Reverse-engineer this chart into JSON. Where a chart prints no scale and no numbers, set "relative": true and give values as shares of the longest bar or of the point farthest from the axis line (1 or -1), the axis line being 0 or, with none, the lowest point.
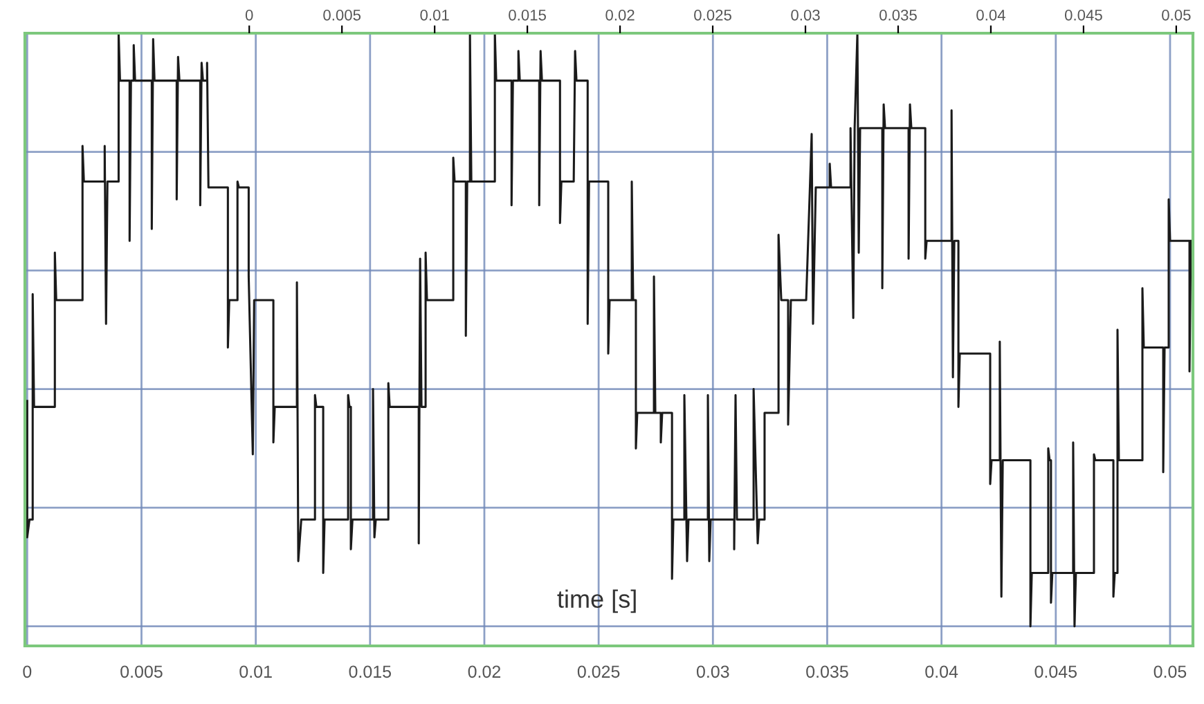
{
  "chart_data": {
    "type": "line",
    "relative": true,
    "xlabel": "time [s]",
    "grid": true,
    "xlim": [
      -0.0001,
      0.051
    ],
    "xticks": [
      0,
      0.005,
      0.01,
      0.015,
      0.02,
      0.025,
      0.03,
      0.035,
      0.04,
      0.045,
      0.05
    ],
    "x2lim": [
      -0.0121,
      0.0509
    ],
    "x2ticks": [
      0,
      0.005,
      0.01,
      0.015,
      0.02,
      0.025,
      0.03,
      0.035,
      0.04,
      0.045,
      0.05
    ],
    "series": [
      {
        "color": "#1a1a1a",
        "x": [
          0,
          0,
          0.0001,
          0.00024,
          0.00024,
          0.0003,
          0.00121,
          0.00121,
          0.00127,
          0.00242,
          0.00242,
          0.00248,
          0.00339,
          0.00339,
          0.00345,
          0.00351,
          0.004,
          0.004,
          0.00406,
          0.00448,
          0.00448,
          0.00454,
          0.00466,
          0.00466,
          0.00472,
          0.00545,
          0.00545,
          0.00551,
          0.00557,
          0.00654,
          0.00654,
          0.0066,
          0.00666,
          0.00757,
          0.00757,
          0.00763,
          0.00769,
          0.00787,
          0.00787,
          0.00793,
          0.00878,
          0.00878,
          0.00884,
          0.0092,
          0.0092,
          0.00926,
          0.00969,
          0.00969,
          0.00987,
          0.00993,
          0.01077,
          0.01077,
          0.01083,
          0.0118,
          0.0118,
          0.01186,
          0.01199,
          0.01259,
          0.01259,
          0.01265,
          0.01295,
          0.01295,
          0.01301,
          0.01404,
          0.01404,
          0.0141,
          0.01416,
          0.01416,
          0.01423,
          0.01513,
          0.01513,
          0.01519,
          0.01525,
          0.0158,
          0.0158,
          0.01586,
          0.01713,
          0.01713,
          0.01719,
          0.01725,
          0.01743,
          0.01743,
          0.01749,
          0.01864,
          0.01864,
          0.0187,
          0.01919,
          0.01919,
          0.01925,
          0.01937,
          0.01937,
          0.01943,
          0.02046,
          0.02046,
          0.02052,
          0.02119,
          0.02119,
          0.02125,
          0.02149,
          0.02149,
          0.02155,
          0.0224,
          0.0224,
          0.02246,
          0.02252,
          0.02331,
          0.02331,
          0.02337,
          0.02391,
          0.02397,
          0.02403,
          0.02452,
          0.02452,
          0.02458,
          0.02542,
          0.02542,
          0.02548,
          0.02645,
          0.02645,
          0.02651,
          0.02663,
          0.02663,
          0.02669,
          0.02742,
          0.02742,
          0.02748,
          0.02772,
          0.02772,
          0.02778,
          0.02821,
          0.02821,
          0.02827,
          0.02875,
          0.02875,
          0.02887,
          0.02893,
          0.02978,
          0.02978,
          0.02984,
          0.0299,
          0.03093,
          0.03093,
          0.03099,
          0.03105,
          0.03178,
          0.03178,
          0.03196,
          0.03202,
          0.03226,
          0.03226,
          0.03287,
          0.03287,
          0.03299,
          0.03329,
          0.03329,
          0.03341,
          0.03408,
          0.03432,
          0.03438,
          0.0345,
          0.03511,
          0.03511,
          0.03517,
          0.03602,
          0.03602,
          0.03614,
          0.0362,
          0.03632,
          0.03638,
          0.03644,
          0.03741,
          0.03741,
          0.03747,
          0.03753,
          0.03856,
          0.03856,
          0.03862,
          0.03868,
          0.03929,
          0.03929,
          0.03935,
          0.04044,
          0.04044,
          0.0405,
          0.04056,
          0.04074,
          0.04074,
          0.0408,
          0.04213,
          0.04213,
          0.04219,
          0.04255,
          0.04255,
          0.04262,
          0.04268,
          0.04389,
          0.04389,
          0.04395,
          0.04467,
          0.04467,
          0.04473,
          0.04479,
          0.04479,
          0.04485,
          0.04576,
          0.04576,
          0.04582,
          0.04588,
          0.04667,
          0.04667,
          0.04673,
          0.04752,
          0.04752,
          0.04758,
          0.0477,
          0.0477,
          0.04776,
          0.04879,
          0.04879,
          0.04885,
          0.0497,
          0.0497,
          0.04976,
          0.04994,
          0.04994,
          0.05,
          0.05085,
          0.05085,
          0.05091
        ],
        "values": [
          0.38,
          0.15,
          0.18,
          0.18,
          0.56,
          0.37,
          0.37,
          0.63,
          0.55,
          0.55,
          0.81,
          0.75,
          0.75,
          0.81,
          0.51,
          0.75,
          0.75,
          1.0,
          0.92,
          0.92,
          0.65,
          0.92,
          0.92,
          0.98,
          0.92,
          0.92,
          0.67,
          0.99,
          0.92,
          0.92,
          0.72,
          0.96,
          0.92,
          0.92,
          0.71,
          0.95,
          0.92,
          0.92,
          0.95,
          0.74,
          0.74,
          0.47,
          0.55,
          0.55,
          0.75,
          0.74,
          0.74,
          0.59,
          0.29,
          0.55,
          0.55,
          0.31,
          0.37,
          0.37,
          0.58,
          0.11,
          0.18,
          0.18,
          0.39,
          0.37,
          0.37,
          0.09,
          0.18,
          0.18,
          0.39,
          0.37,
          0.37,
          0.13,
          0.18,
          0.18,
          0.4,
          0.15,
          0.18,
          0.18,
          0.41,
          0.37,
          0.37,
          0.14,
          0.62,
          0.37,
          0.37,
          0.63,
          0.55,
          0.55,
          0.79,
          0.75,
          0.75,
          0.49,
          0.75,
          0.75,
          1.0,
          0.75,
          0.75,
          1.0,
          0.92,
          0.92,
          0.71,
          0.92,
          0.92,
          0.97,
          0.92,
          0.92,
          0.71,
          0.97,
          0.92,
          0.92,
          0.68,
          0.75,
          0.75,
          0.97,
          0.92,
          0.92,
          0.51,
          0.75,
          0.75,
          0.46,
          0.55,
          0.55,
          0.75,
          0.55,
          0.55,
          0.3,
          0.36,
          0.36,
          0.59,
          0.36,
          0.36,
          0.31,
          0.36,
          0.36,
          0.08,
          0.18,
          0.18,
          0.39,
          0.11,
          0.18,
          0.18,
          0.39,
          0.11,
          0.18,
          0.18,
          0.13,
          0.39,
          0.18,
          0.18,
          0.4,
          0.14,
          0.18,
          0.18,
          0.36,
          0.36,
          0.66,
          0.55,
          0.55,
          0.34,
          0.55,
          0.55,
          0.83,
          0.51,
          0.74,
          0.74,
          0.78,
          0.74,
          0.74,
          0.84,
          0.52,
          0.84,
          1.0,
          0.63,
          0.84,
          0.84,
          0.57,
          0.88,
          0.84,
          0.84,
          0.62,
          0.88,
          0.84,
          0.84,
          0.62,
          0.65,
          0.65,
          0.87,
          0.42,
          0.65,
          0.65,
          0.37,
          0.46,
          0.46,
          0.24,
          0.28,
          0.28,
          0.48,
          0.05,
          0.28,
          0.28,
          0.0,
          0.09,
          0.09,
          0.3,
          0.28,
          0.28,
          0.04,
          0.09,
          0.09,
          0.31,
          0.0,
          0.09,
          0.09,
          0.29,
          0.28,
          0.28,
          0.05,
          0.09,
          0.09,
          0.5,
          0.28,
          0.28,
          0.57,
          0.47,
          0.47,
          0.26,
          0.47,
          0.47,
          0.72,
          0.65,
          0.65,
          0.43,
          0.65
        ]
      }
    ]
  }
}
